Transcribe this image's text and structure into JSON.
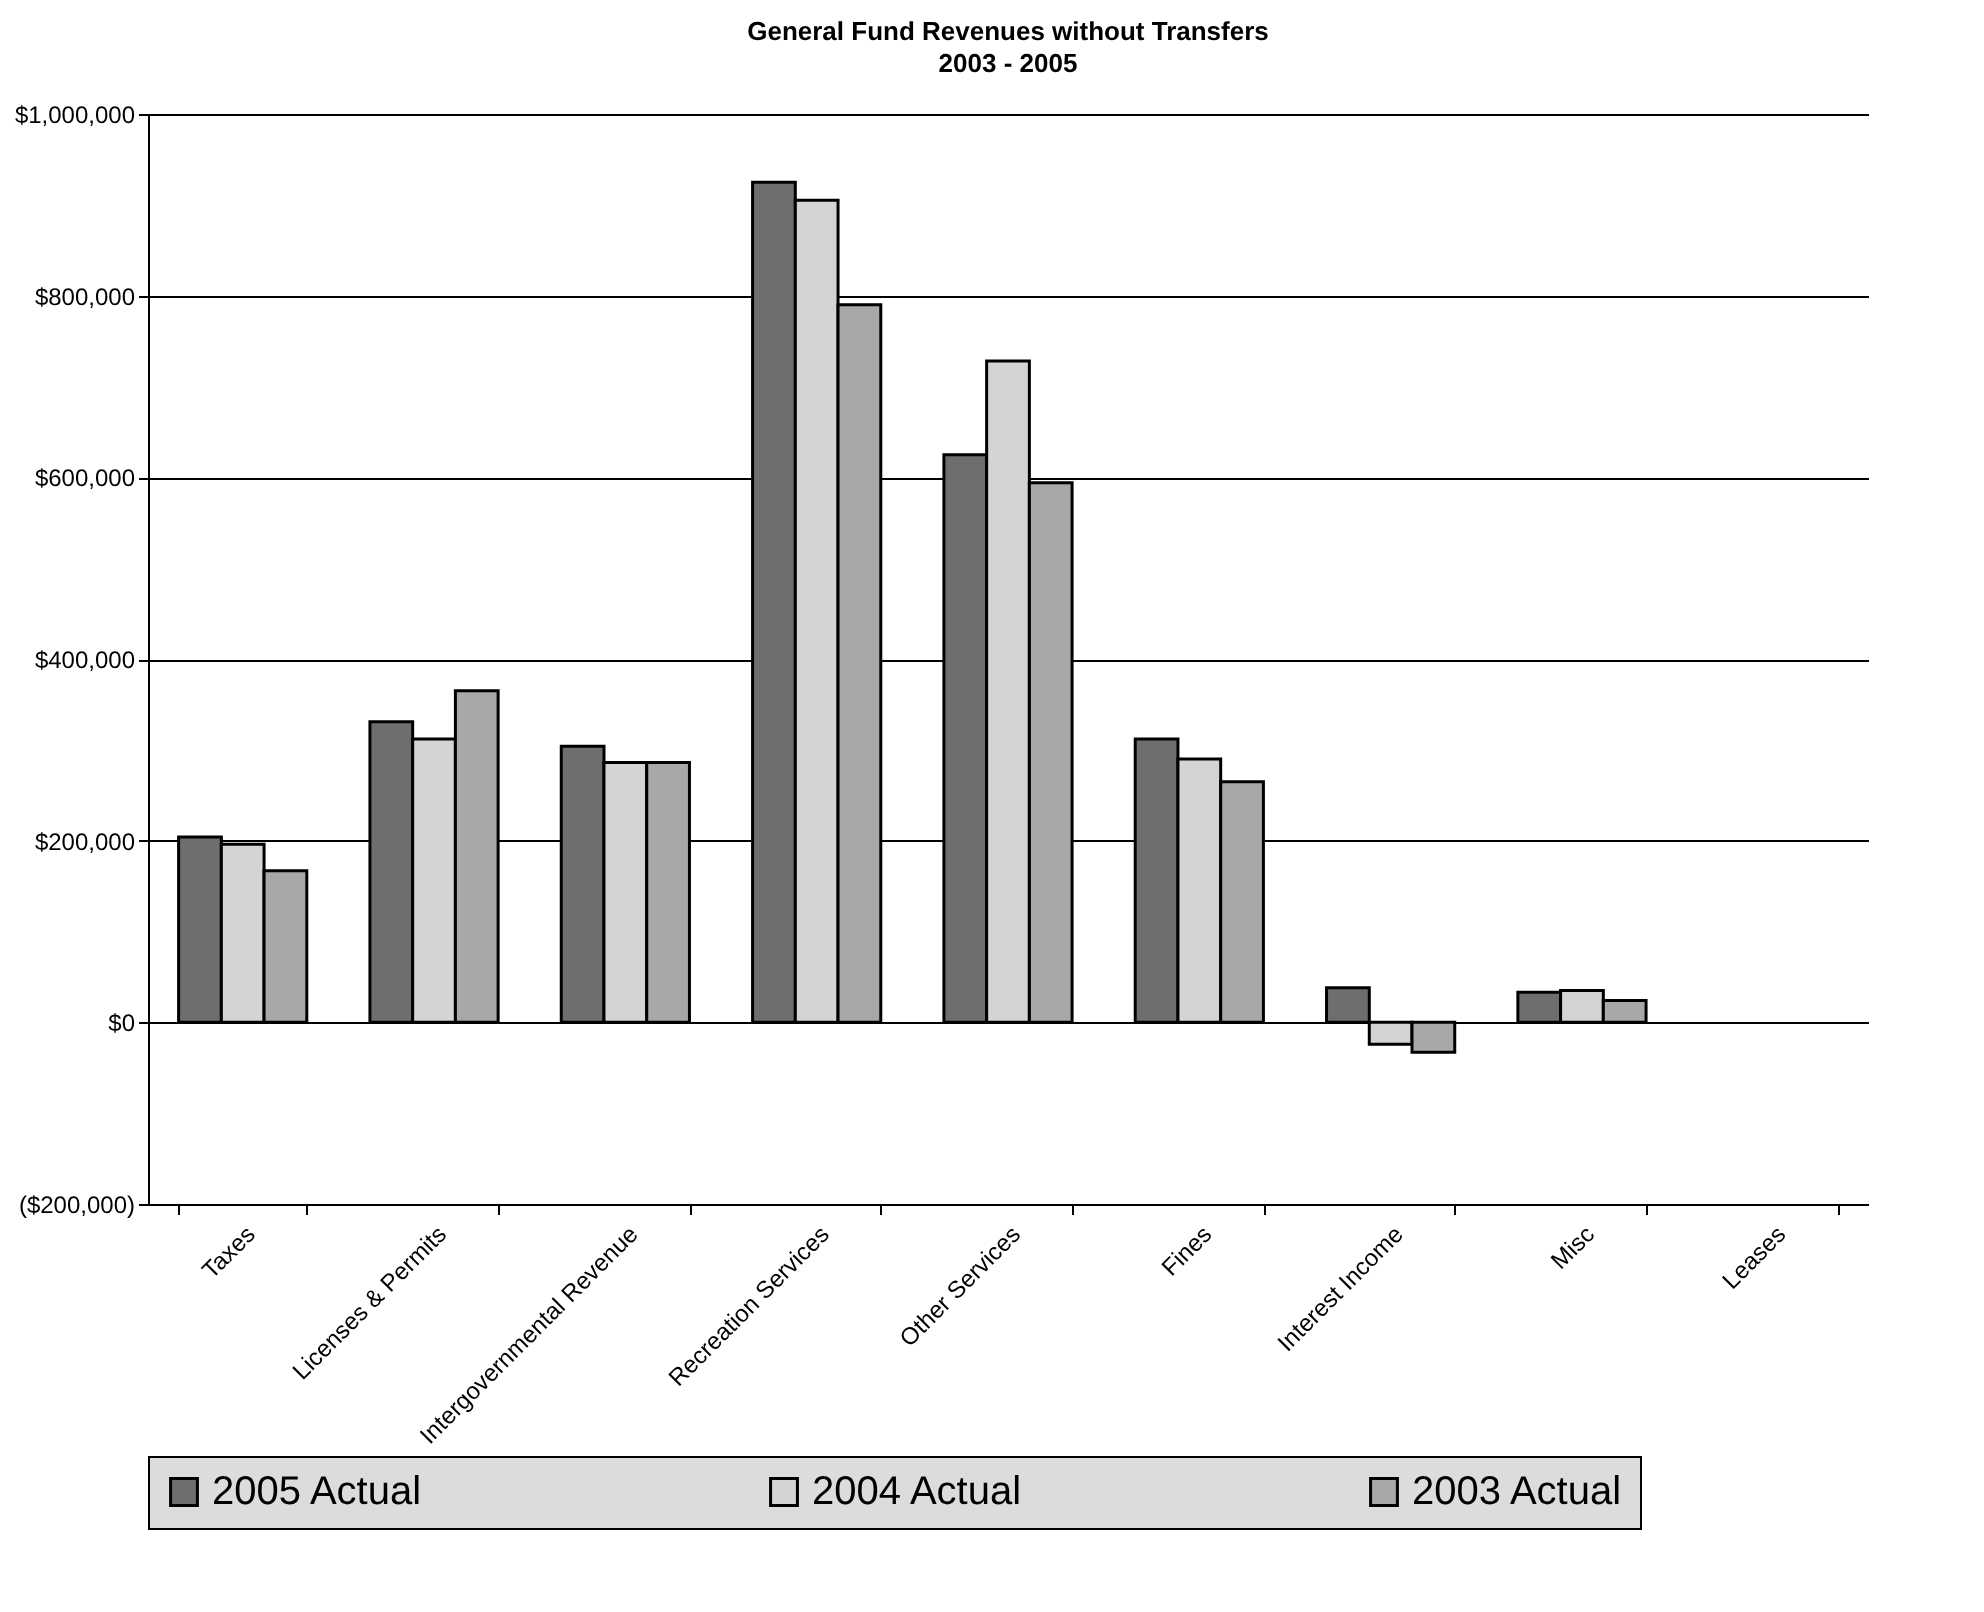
{
  "chart_data": {
    "type": "bar",
    "title": "General Fund Revenues without Transfers",
    "subtitle": "2003 - 2005",
    "categories": [
      "Taxes",
      "Licenses & Permits",
      "Intergovernmental Revenue",
      "Recreation Services",
      "Other Services",
      "Fines",
      "Interest Income",
      "Misc",
      "Leases"
    ],
    "series": [
      {
        "name": "2005 Actual",
        "color": "#6e6e6e",
        "values": [
          204000,
          331000,
          304000,
          925000,
          625000,
          312000,
          38000,
          33000,
          null
        ]
      },
      {
        "name": "2004 Actual",
        "color": "#d4d4d4",
        "values": [
          196000,
          312000,
          286000,
          905000,
          728000,
          290000,
          -24000,
          35000,
          null
        ]
      },
      {
        "name": "2003 Actual",
        "color": "#a8a8a8",
        "values": [
          167000,
          365000,
          286000,
          790000,
          594000,
          265000,
          -33000,
          24000,
          null
        ]
      }
    ],
    "ylim": [
      -200000,
      1000000
    ],
    "yticks": [
      {
        "value": -200000,
        "label": "($200,000)"
      },
      {
        "value": 0,
        "label": "$0"
      },
      {
        "value": 200000,
        "label": "$200,000"
      },
      {
        "value": 400000,
        "label": "$400,000"
      },
      {
        "value": 600000,
        "label": "$600,000"
      },
      {
        "value": 800000,
        "label": "$800,000"
      },
      {
        "value": 1000000,
        "label": "$1,000,000"
      }
    ],
    "grid": "y",
    "legend": "bottom"
  }
}
